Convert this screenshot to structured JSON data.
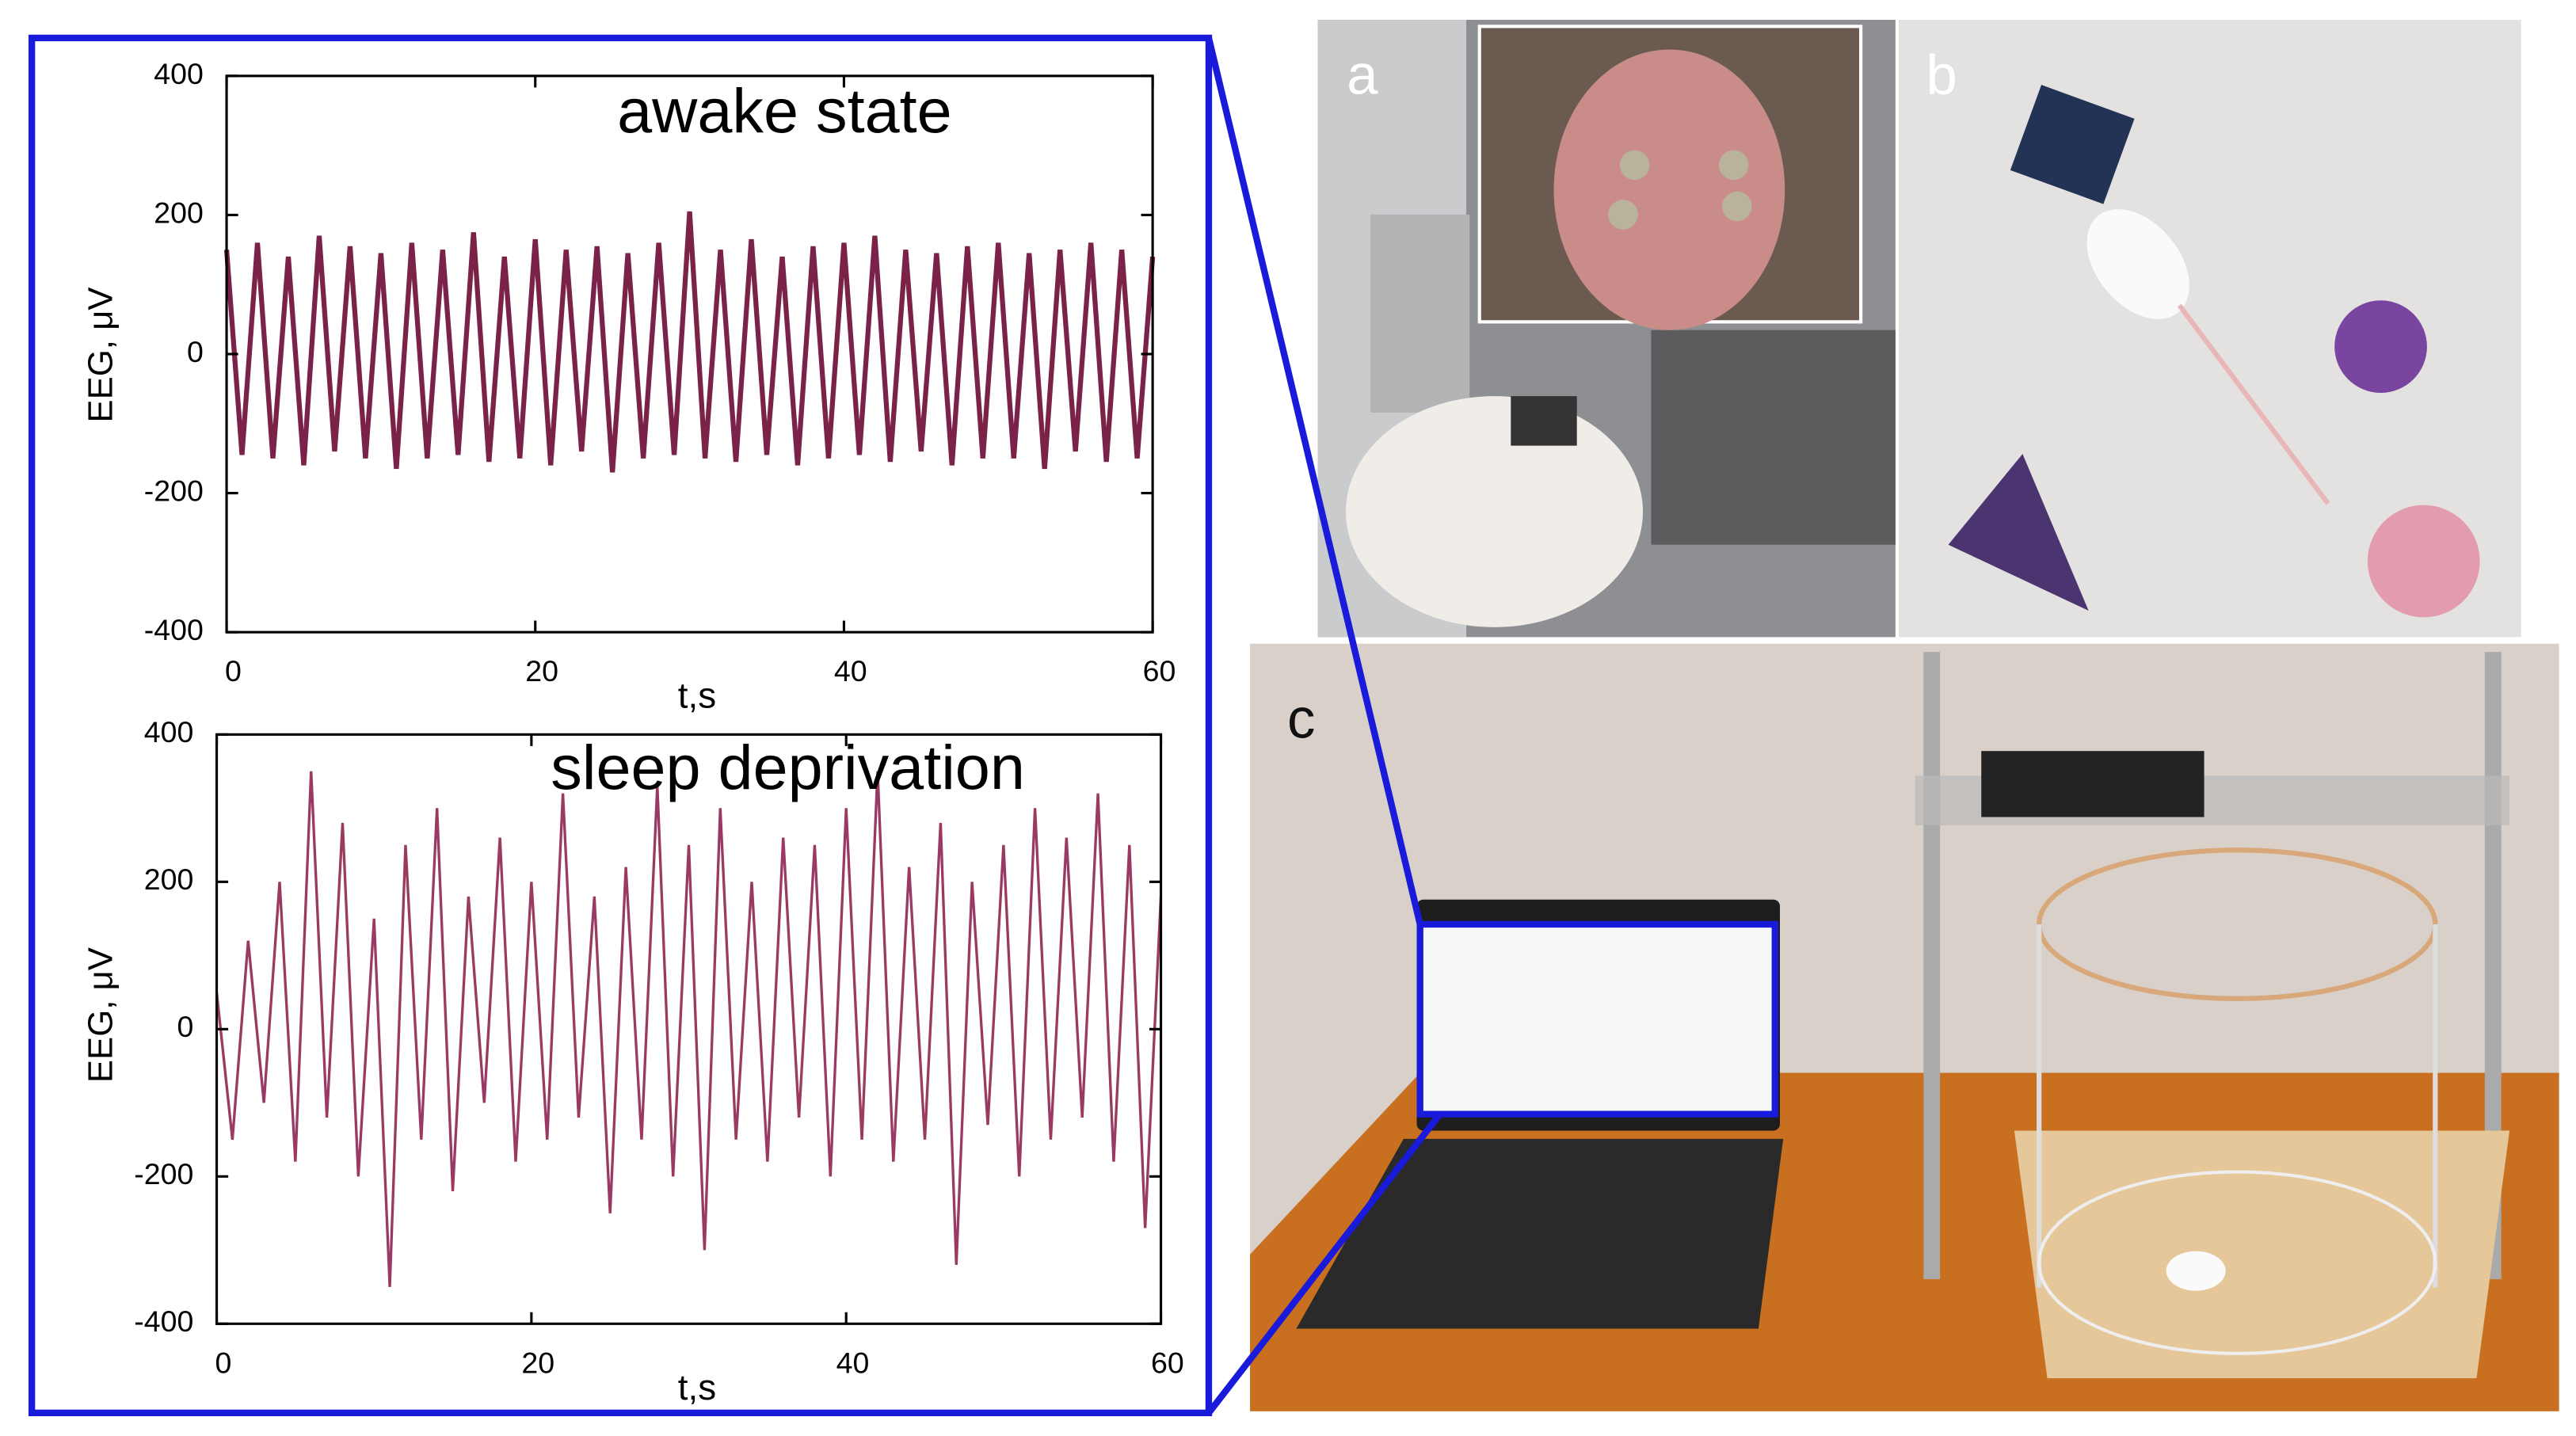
{
  "chart_data": [
    {
      "type": "line",
      "title": "awake state",
      "x_label": "t,s",
      "y_label": "EEG, μV",
      "color": "#7a2248",
      "xlim": [
        0,
        60
      ],
      "ylim": [
        -400,
        400
      ],
      "xticks": [
        0,
        20,
        40,
        60
      ],
      "yticks": [
        -400,
        -200,
        0,
        200,
        400
      ],
      "x": [
        0,
        1,
        2,
        3,
        4,
        5,
        6,
        7,
        8,
        9,
        10,
        11,
        12,
        13,
        14,
        15,
        16,
        17,
        18,
        19,
        20,
        21,
        22,
        23,
        24,
        25,
        26,
        27,
        28,
        29,
        30,
        31,
        32,
        33,
        34,
        35,
        36,
        37,
        38,
        39,
        40,
        41,
        42,
        43,
        44,
        45,
        46,
        47,
        48,
        49,
        50,
        51,
        52,
        53,
        54,
        55,
        56,
        57,
        58,
        59,
        60
      ],
      "values": [
        150,
        -145,
        160,
        -150,
        140,
        -160,
        170,
        -140,
        155,
        -150,
        145,
        -165,
        160,
        -150,
        150,
        -145,
        175,
        -155,
        140,
        -150,
        165,
        -160,
        150,
        -140,
        155,
        -170,
        145,
        -150,
        160,
        -145,
        205,
        -150,
        150,
        -155,
        165,
        -145,
        140,
        -160,
        155,
        -150,
        160,
        -145,
        170,
        -155,
        150,
        -140,
        145,
        -160,
        155,
        -150,
        160,
        -150,
        145,
        -165,
        150,
        -140,
        160,
        -155,
        150,
        -150,
        140
      ]
    },
    {
      "type": "line",
      "title": "sleep deprivation",
      "x_label": "t,s",
      "y_label": "EEG, μV",
      "color": "#9a3a62",
      "xlim": [
        0,
        60
      ],
      "ylim": [
        -400,
        400
      ],
      "xticks": [
        0,
        20,
        40,
        60
      ],
      "yticks": [
        -400,
        -200,
        0,
        200,
        400
      ],
      "x": [
        0,
        1,
        2,
        3,
        4,
        5,
        6,
        7,
        8,
        9,
        10,
        11,
        12,
        13,
        14,
        15,
        16,
        17,
        18,
        19,
        20,
        21,
        22,
        23,
        24,
        25,
        26,
        27,
        28,
        29,
        30,
        31,
        32,
        33,
        34,
        35,
        36,
        37,
        38,
        39,
        40,
        41,
        42,
        43,
        44,
        45,
        46,
        47,
        48,
        49,
        50,
        51,
        52,
        53,
        54,
        55,
        56,
        57,
        58,
        59,
        60
      ],
      "values": [
        50,
        -150,
        120,
        -100,
        200,
        -180,
        350,
        -120,
        280,
        -200,
        150,
        -350,
        250,
        -150,
        300,
        -220,
        180,
        -100,
        260,
        -180,
        200,
        -150,
        320,
        -120,
        180,
        -250,
        220,
        -150,
        330,
        -200,
        250,
        -300,
        300,
        -150,
        200,
        -180,
        260,
        -120,
        250,
        -200,
        300,
        -150,
        350,
        -180,
        220,
        -150,
        280,
        -320,
        200,
        -130,
        250,
        -200,
        300,
        -150,
        260,
        -120,
        320,
        -180,
        250,
        -270,
        180
      ]
    }
  ],
  "panel_labels": [
    "a",
    "b",
    "c"
  ]
}
